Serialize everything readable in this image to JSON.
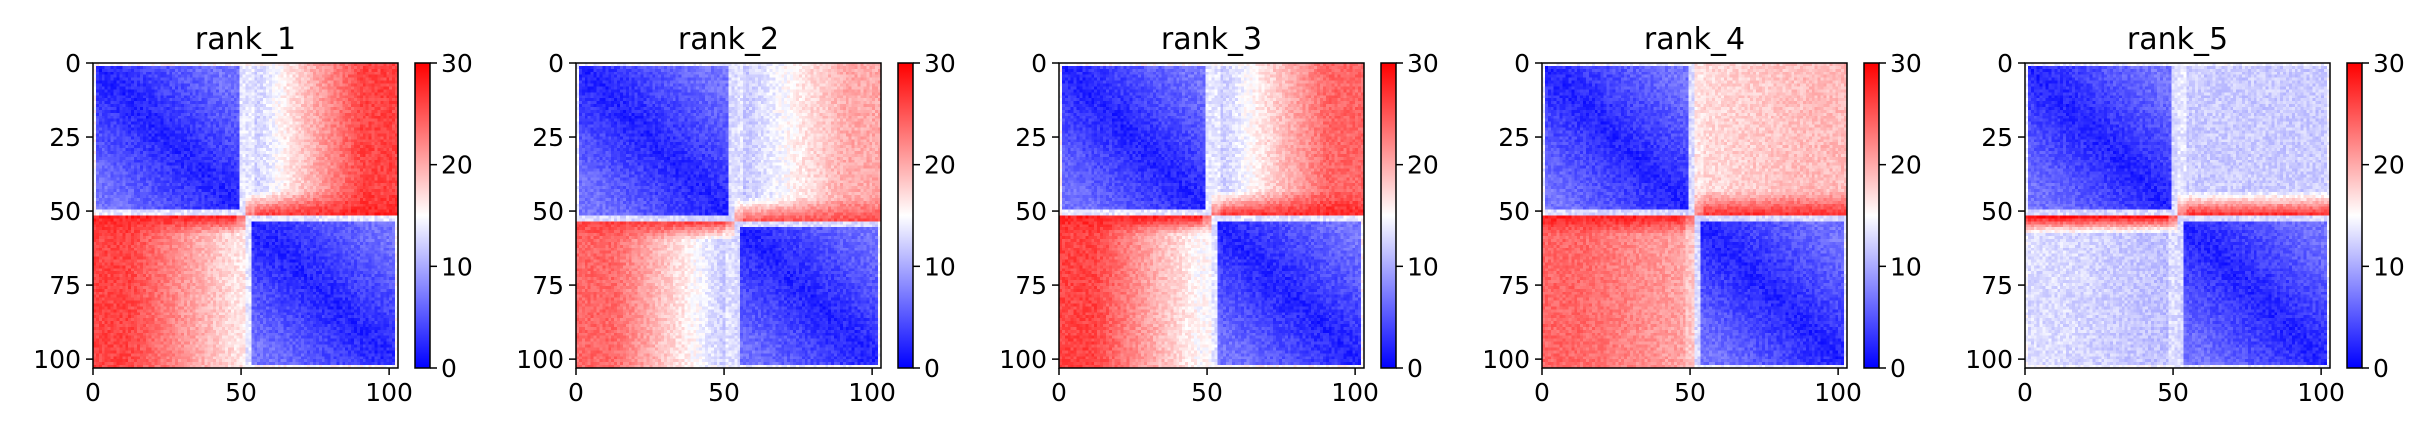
{
  "chart_data": [
    {
      "type": "heatmap",
      "title": "rank_1",
      "grid_size": 104,
      "xlim": [
        0,
        103
      ],
      "ylim": [
        103,
        0
      ],
      "x_ticks": [
        0,
        50,
        100
      ],
      "y_ticks": [
        0,
        25,
        50,
        75,
        100
      ],
      "colorbar": {
        "min": 0,
        "max": 30,
        "ticks": [
          0,
          10,
          20,
          30
        ],
        "colormap": "bwr",
        "colors": [
          "#0000ff",
          "#ffffff",
          "#ff0000"
        ]
      },
      "structure": {
        "split_index": 52,
        "within_block_value": 2,
        "off_block_values": {
          "upper_near": 11,
          "upper_far": 26,
          "lower_near": 16,
          "lower_far": 26
        },
        "stripe_band_value": 28,
        "edge_value": 17
      }
    },
    {
      "type": "heatmap",
      "title": "rank_2",
      "grid_size": 104,
      "xlim": [
        0,
        103
      ],
      "ylim": [
        103,
        0
      ],
      "x_ticks": [
        0,
        50,
        100
      ],
      "y_ticks": [
        0,
        25,
        50,
        75,
        100
      ],
      "colorbar": {
        "min": 0,
        "max": 30,
        "ticks": [
          0,
          10,
          20,
          30
        ],
        "colormap": "bwr",
        "colors": [
          "#0000ff",
          "#ffffff",
          "#ff0000"
        ]
      },
      "structure": {
        "split_index": 54,
        "within_block_value": 2,
        "off_block_values": {
          "upper_near": 11,
          "upper_far": 20,
          "lower_near": 11,
          "lower_far": 24
        },
        "stripe_band_value": 26,
        "edge_value": 16
      }
    },
    {
      "type": "heatmap",
      "title": "rank_3",
      "grid_size": 104,
      "xlim": [
        0,
        103
      ],
      "ylim": [
        103,
        0
      ],
      "x_ticks": [
        0,
        50,
        100
      ],
      "y_ticks": [
        0,
        25,
        50,
        75,
        100
      ],
      "colorbar": {
        "min": 0,
        "max": 30,
        "ticks": [
          0,
          10,
          20,
          30
        ],
        "colormap": "bwr",
        "colors": [
          "#0000ff",
          "#ffffff",
          "#ff0000"
        ]
      },
      "structure": {
        "split_index": 52,
        "within_block_value": 2,
        "off_block_values": {
          "upper_near": 11,
          "upper_far": 24,
          "lower_near": 14,
          "lower_far": 26
        },
        "stripe_band_value": 28,
        "edge_value": 17
      }
    },
    {
      "type": "heatmap",
      "title": "rank_4",
      "grid_size": 104,
      "xlim": [
        0,
        103
      ],
      "ylim": [
        103,
        0
      ],
      "x_ticks": [
        0,
        50,
        100
      ],
      "y_ticks": [
        0,
        25,
        50,
        75,
        100
      ],
      "colorbar": {
        "min": 0,
        "max": 30,
        "ticks": [
          0,
          10,
          20,
          30
        ],
        "colormap": "bwr",
        "colors": [
          "#0000ff",
          "#ffffff",
          "#ff0000"
        ]
      },
      "structure": {
        "split_index": 52,
        "within_block_value": 2,
        "off_block_values": {
          "upper_near": 17,
          "upper_far": 19,
          "lower_near": 20,
          "lower_far": 24
        },
        "stripe_band_value": 28,
        "edge_value": 16
      }
    },
    {
      "type": "heatmap",
      "title": "rank_5",
      "grid_size": 104,
      "xlim": [
        0,
        103
      ],
      "ylim": [
        103,
        0
      ],
      "x_ticks": [
        0,
        50,
        100
      ],
      "y_ticks": [
        0,
        25,
        50,
        75,
        100
      ],
      "colorbar": {
        "min": 0,
        "max": 30,
        "ticks": [
          0,
          10,
          20,
          30
        ],
        "colormap": "bwr",
        "colors": [
          "#0000ff",
          "#ffffff",
          "#ff0000"
        ]
      },
      "structure": {
        "split_index": 52,
        "within_block_value": 2,
        "off_block_values": {
          "upper_near": 12,
          "upper_far": 12,
          "lower_near": 11,
          "lower_far": 13
        },
        "stripe_band_value": 29,
        "edge_value": 16
      }
    }
  ]
}
